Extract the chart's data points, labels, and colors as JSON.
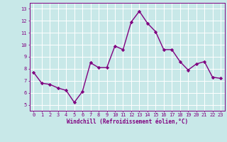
{
  "x": [
    0,
    1,
    2,
    3,
    4,
    5,
    6,
    7,
    8,
    9,
    10,
    11,
    12,
    13,
    14,
    15,
    16,
    17,
    18,
    19,
    20,
    21,
    22,
    23
  ],
  "y": [
    7.7,
    6.8,
    6.7,
    6.4,
    6.2,
    5.2,
    6.1,
    8.5,
    8.1,
    8.1,
    9.9,
    9.6,
    11.9,
    12.8,
    11.8,
    11.1,
    9.6,
    9.6,
    8.6,
    7.9,
    8.4,
    8.6,
    7.3,
    7.2
  ],
  "line_color": "#800080",
  "marker": "D",
  "marker_size": 2.2,
  "linewidth": 1.0,
  "bg_color": "#c8e8e8",
  "grid_color": "#ffffff",
  "xlabel": "Windchill (Refroidissement éolien,°C)",
  "xlabel_color": "#800080",
  "tick_color": "#800080",
  "xlim": [
    -0.5,
    23.5
  ],
  "ylim": [
    4.5,
    13.5
  ],
  "yticks": [
    5,
    6,
    7,
    8,
    9,
    10,
    11,
    12,
    13
  ],
  "xticks": [
    0,
    1,
    2,
    3,
    4,
    5,
    6,
    7,
    8,
    9,
    10,
    11,
    12,
    13,
    14,
    15,
    16,
    17,
    18,
    19,
    20,
    21,
    22,
    23
  ],
  "tick_fontsize": 5.0,
  "xlabel_fontsize": 5.5
}
